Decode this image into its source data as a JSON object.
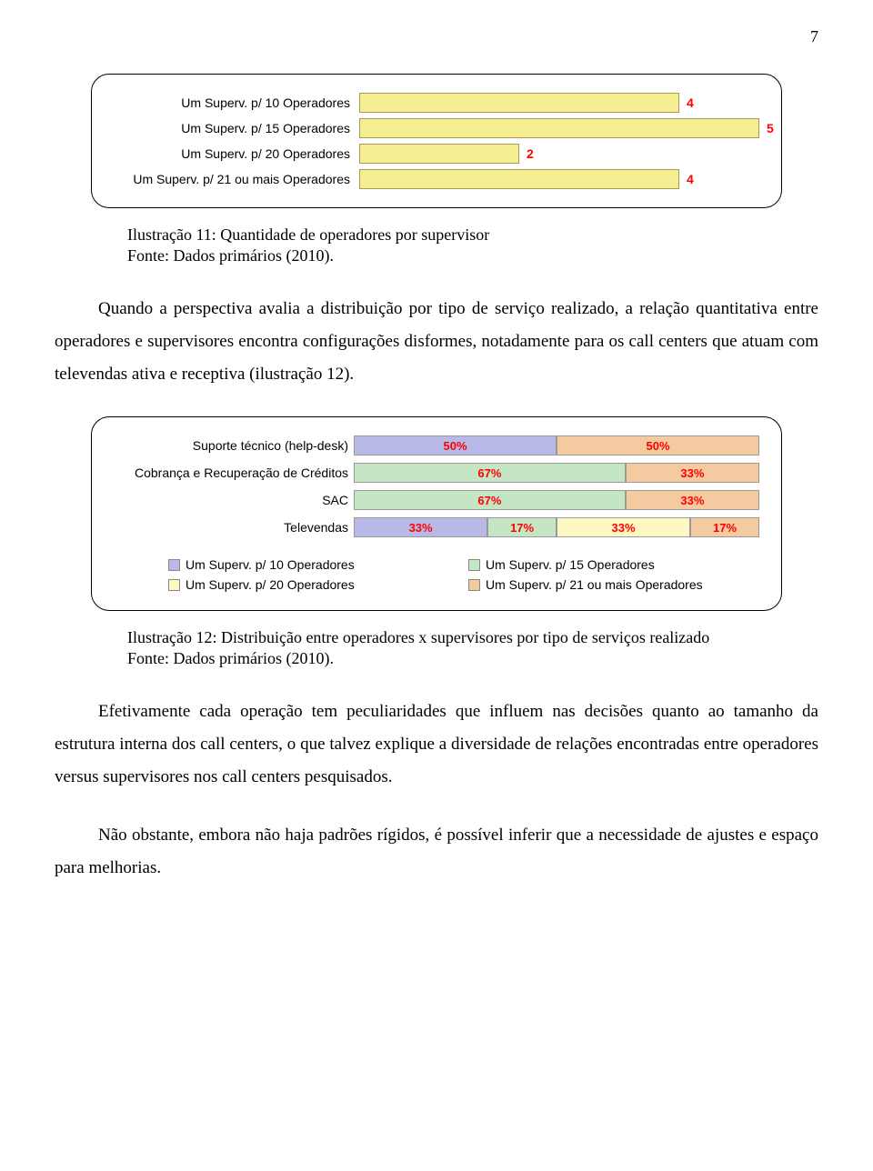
{
  "page_number": "7",
  "chart1": {
    "type": "bar",
    "max_value": 5,
    "bar_fill": "#f5ee92",
    "bar_border": "#a89a50",
    "value_color": "#ff0000",
    "label_fontsize": 14,
    "value_fontsize": 14,
    "rows": [
      {
        "label": "Um Superv. p/  10 Operadores",
        "value": 4
      },
      {
        "label": "Um Superv. p/  15 Operadores",
        "value": 5
      },
      {
        "label": "Um Superv. p/  20 Operadores",
        "value": 2
      },
      {
        "label": "Um Superv. p/  21 ou mais Operadores",
        "value": 4
      }
    ]
  },
  "caption1_line1": "Ilustração 11: Quantidade de operadores por supervisor",
  "caption1_line2": "Fonte: Dados primários (2010).",
  "para1": "Quando a perspectiva avalia a distribuição por tipo de serviço realizado, a relação quantitativa entre operadores e supervisores encontra configurações disformes, notadamente para os call centers que atuam com televendas ativa e receptiva (ilustração 12).",
  "chart2": {
    "type": "stacked-bar",
    "value_color": "#ff0000",
    "label_fontsize": 14,
    "colors": {
      "c10": "#b9b9e8",
      "c15": "#c5e6c5",
      "c20": "#fdf7c4",
      "c21": "#f4cba0"
    },
    "rows": [
      {
        "label": "Suporte técnico (help-desk)",
        "segments": [
          {
            "key": "c10",
            "value": 50,
            "text": "50%"
          },
          {
            "key": "c21",
            "value": 50,
            "text": "50%"
          }
        ]
      },
      {
        "label": "Cobrança e Recuperação de Créditos",
        "segments": [
          {
            "key": "c15",
            "value": 67,
            "text": "67%"
          },
          {
            "key": "c21",
            "value": 33,
            "text": "33%"
          }
        ]
      },
      {
        "label": "SAC",
        "segments": [
          {
            "key": "c15",
            "value": 67,
            "text": "67%"
          },
          {
            "key": "c21",
            "value": 33,
            "text": "33%"
          }
        ]
      },
      {
        "label": "Televendas",
        "segments": [
          {
            "key": "c10",
            "value": 33,
            "text": "33%"
          },
          {
            "key": "c15",
            "value": 17,
            "text": "17%"
          },
          {
            "key": "c20",
            "value": 33,
            "text": "33%"
          },
          {
            "key": "c21",
            "value": 17,
            "text": "17%"
          }
        ]
      }
    ],
    "legend": [
      {
        "key": "c10",
        "label": "Um Superv. p/  10 Operadores"
      },
      {
        "key": "c15",
        "label": "Um Superv. p/  15 Operadores"
      },
      {
        "key": "c20",
        "label": "Um Superv. p/  20 Operadores"
      },
      {
        "key": "c21",
        "label": "Um Superv. p/  21 ou mais Operadores"
      }
    ]
  },
  "caption2_line1": "Ilustração 12: Distribuição entre operadores x supervisores por tipo de serviços realizado",
  "caption2_line2": "Fonte: Dados primários (2010).",
  "para2": "Efetivamente cada operação tem peculiaridades que influem nas decisões quanto ao tamanho da estrutura interna dos call centers, o que talvez explique a diversidade de relações encontradas entre operadores versus supervisores nos call centers pesquisados.",
  "para3": "Não obstante, embora não haja padrões rígidos, é possível inferir que a necessidade de ajustes e espaço para melhorias."
}
